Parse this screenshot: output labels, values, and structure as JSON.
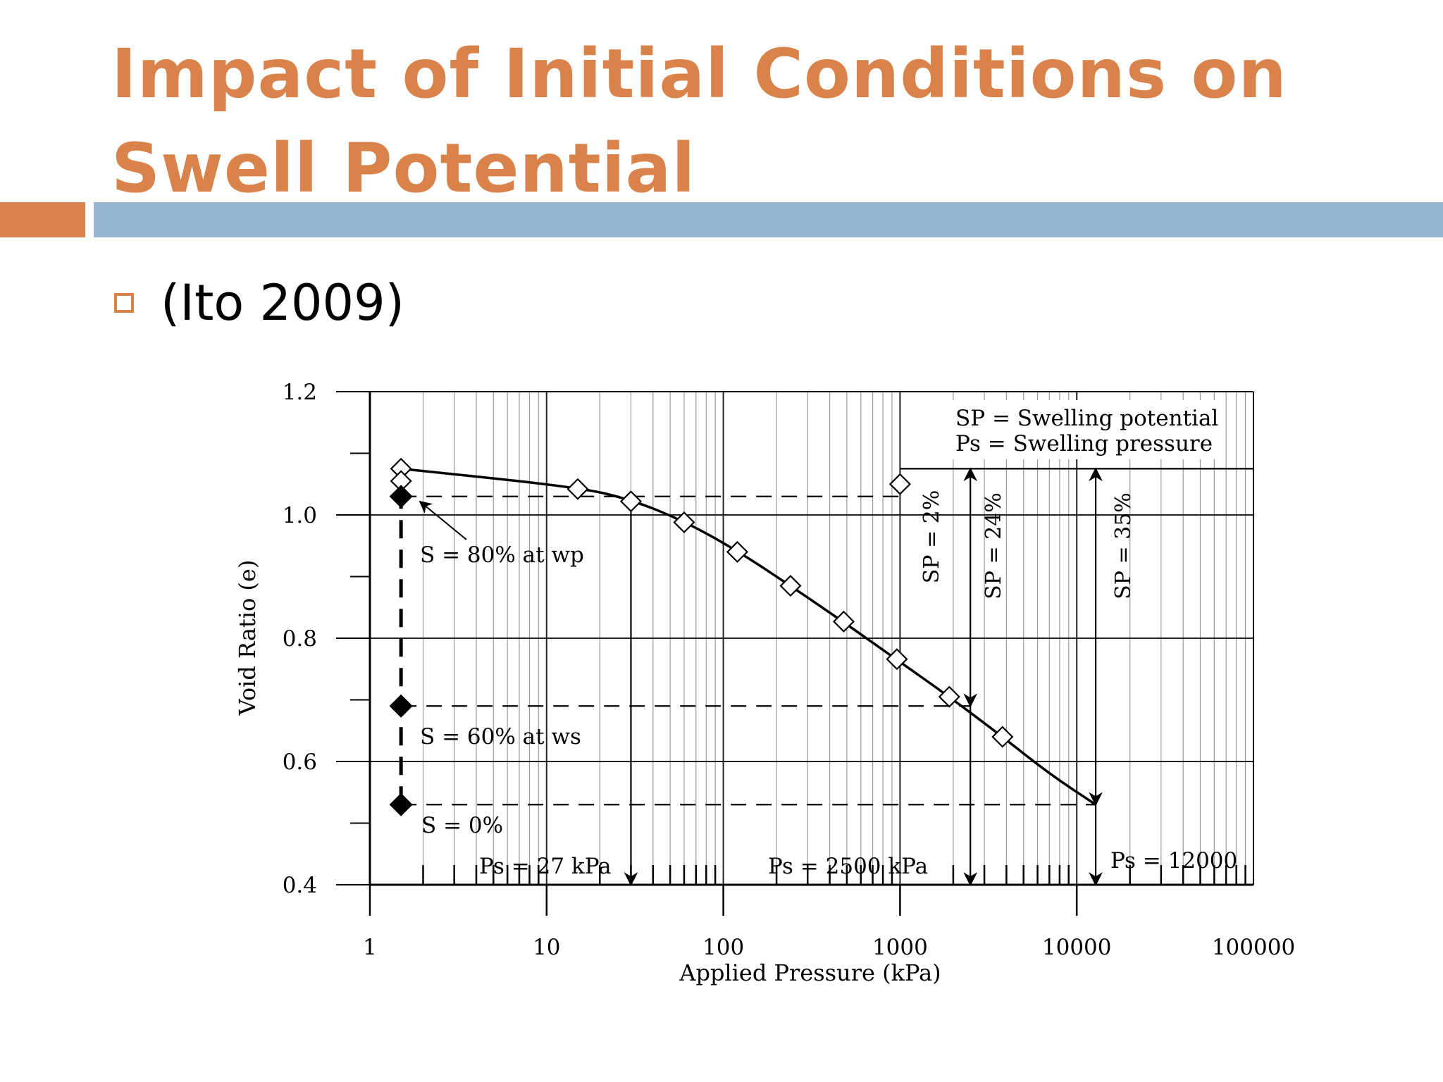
{
  "slide": {
    "title": "Impact of Initial Conditions on Swell Potential",
    "bullet": "(Ito 2009)"
  },
  "colors": {
    "title": "#d9834b",
    "accent_bar_left": "#d9834b",
    "accent_bar_right": "#94b6d2"
  },
  "chart_data": {
    "type": "scatter",
    "x_scale": "log",
    "xlim": [
      1,
      100000
    ],
    "ylim": [
      0.4,
      1.2
    ],
    "xlabel": "Applied Pressure (kPa)",
    "ylabel": "Void Ratio (e)",
    "x_ticks": [
      "1",
      "10",
      "100",
      "1000",
      "10000",
      "100000"
    ],
    "y_ticks": [
      "0.4",
      "0.6",
      "0.8",
      "1.0",
      "1.2"
    ],
    "grid": true,
    "series": [
      {
        "marker": "open-diamond",
        "line": "solid-curve",
        "points": [
          [
            1.5,
            1.075
          ],
          [
            1.5,
            1.055
          ],
          [
            15,
            1.042
          ],
          [
            30,
            1.022
          ],
          [
            60,
            0.988
          ],
          [
            120,
            0.94
          ],
          [
            240,
            0.885
          ],
          [
            480,
            0.827
          ],
          [
            960,
            0.766
          ],
          [
            1900,
            0.705
          ],
          [
            3800,
            0.64
          ]
        ],
        "curve": [
          [
            1.5,
            1.075
          ],
          [
            15,
            1.045
          ],
          [
            30,
            1.025
          ],
          [
            60,
            0.99
          ],
          [
            120,
            0.942
          ],
          [
            240,
            0.885
          ],
          [
            480,
            0.826
          ],
          [
            960,
            0.765
          ],
          [
            1900,
            0.705
          ],
          [
            3800,
            0.64
          ],
          [
            7000,
            0.58
          ],
          [
            12800,
            0.53
          ]
        ]
      },
      {
        "marker": "open-diamond",
        "points": [
          [
            1000,
            1.05
          ]
        ]
      },
      {
        "marker": "filled-diamond",
        "points": [
          [
            1.5,
            1.03
          ],
          [
            1.5,
            0.69
          ],
          [
            1.5,
            0.53
          ]
        ]
      }
    ],
    "reference_lines": [
      {
        "y": 1.03,
        "x_from": 1.5,
        "x_to": 1000,
        "style": "dashed"
      },
      {
        "y": 0.69,
        "x_from": 1.5,
        "x_to": 2500,
        "style": "dashed"
      },
      {
        "y": 0.53,
        "x_from": 1.5,
        "x_to": 12800,
        "style": "dashed"
      },
      {
        "y": 1.075,
        "x_from": 1000,
        "x_to": 100000,
        "style": "solid"
      },
      {
        "x": 1.5,
        "y_from": 0.53,
        "y_to": 1.03,
        "style": "dashed-bold"
      }
    ],
    "arrows": [
      {
        "x": 30,
        "y_from": 1.022,
        "y_to": 0.4
      },
      {
        "x": 2500,
        "y_from": 1.075,
        "y_to": 0.69
      },
      {
        "x": 2500,
        "y_from": 0.69,
        "y_to": 0.4
      },
      {
        "x": 12800,
        "y_from": 1.075,
        "y_to": 0.53
      },
      {
        "x": 12800,
        "y_from": 0.53,
        "y_to": 0.4
      }
    ],
    "legend": {
      "placement": "top-right",
      "entries": [
        "SP = Swelling potential",
        "Ps = Swelling pressure"
      ]
    },
    "annotations": {
      "s80": "S = 80% at wp",
      "s60": "S = 60% at ws",
      "s0": "S = 0%",
      "ps27": "Ps = 27 kPa",
      "ps2500": "Ps = 2500 kPa",
      "ps12000": "Ps = 12000",
      "sp2": "SP = 2%",
      "sp24": "SP = 24%",
      "sp35": "SP = 35%"
    }
  }
}
